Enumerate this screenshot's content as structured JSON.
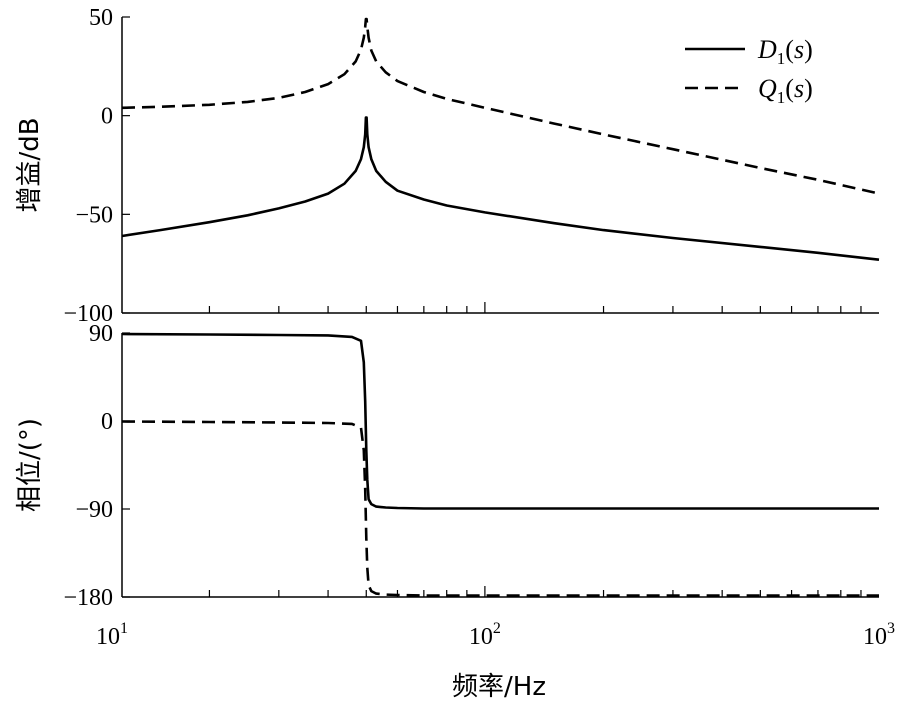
{
  "chart_data": [
    {
      "type": "line",
      "ylabel": "增益/dB",
      "xlabel": "",
      "xscale": "log",
      "xlim": [
        12,
        1000
      ],
      "ylim": [
        -100,
        50
      ],
      "yticks": [
        "50",
        "0",
        "−50",
        "−100"
      ],
      "ytick_values": [
        50,
        0,
        -50,
        -100
      ],
      "grid": false,
      "legend": "top-right",
      "series": [
        {
          "name": "D1(s)",
          "style": "solid",
          "x": [
            12,
            15,
            20,
            25,
            30,
            35,
            40,
            44,
            47,
            48.5,
            49.3,
            49.7,
            49.9,
            50.1,
            50.3,
            50.7,
            51.5,
            53,
            56,
            60,
            70,
            80,
            100,
            150,
            200,
            300,
            500,
            700,
            1000
          ],
          "y": [
            -61,
            -58,
            -54,
            -50.5,
            -47,
            -43.5,
            -39.5,
            -34.5,
            -28,
            -22,
            -16,
            -9.5,
            -1,
            -1,
            -9.5,
            -16,
            -22,
            -28,
            -33.5,
            -38,
            -42.5,
            -45.5,
            -49,
            -54.5,
            -58,
            -62,
            -66.5,
            -69.5,
            -73
          ]
        },
        {
          "name": "Q1(s)",
          "style": "dashed",
          "x": [
            12,
            15,
            20,
            25,
            30,
            35,
            40,
            44,
            47,
            48.5,
            49.3,
            49.7,
            49.9,
            50.1,
            50.3,
            50.7,
            51.5,
            53,
            56,
            60,
            70,
            80,
            100,
            150,
            200,
            300,
            500,
            700,
            1000
          ],
          "y": [
            4,
            4.5,
            5.5,
            7,
            9,
            12,
            16,
            21,
            27.5,
            33.5,
            39.5,
            45,
            49,
            49,
            45,
            39.5,
            33,
            27.5,
            22,
            17.5,
            12,
            8.5,
            4,
            -4,
            -9.5,
            -17,
            -26.5,
            -32.5,
            -39.5
          ]
        }
      ]
    },
    {
      "type": "line",
      "ylabel": "相位/(°)",
      "xlabel": "频率/Hz",
      "xscale": "log",
      "xlim": [
        12,
        1000
      ],
      "ylim": [
        -180,
        90
      ],
      "xticks": [
        "10",
        "10",
        "10"
      ],
      "xtick_exponents": [
        "1",
        "2",
        "3"
      ],
      "xtick_values": [
        10,
        100,
        1000
      ],
      "yticks": [
        "90",
        "0",
        "−90",
        "−180"
      ],
      "ytick_values": [
        90,
        0,
        -90,
        -180
      ],
      "grid": false,
      "series": [
        {
          "name": "D1(s)",
          "style": "solid",
          "x": [
            12,
            20,
            30,
            40,
            46,
            48.5,
            49.3,
            49.7,
            50,
            50.3,
            50.7,
            51.5,
            53,
            56,
            60,
            70,
            100,
            200,
            500,
            1000
          ],
          "y": [
            89,
            88.5,
            88,
            87.5,
            86,
            82,
            60,
            20,
            -30,
            -60,
            -80,
            -85,
            -87.5,
            -88.5,
            -89,
            -89.5,
            -89.5,
            -89.5,
            -89.5,
            -89.5
          ]
        },
        {
          "name": "Q1(s)",
          "style": "dashed",
          "x": [
            12,
            20,
            30,
            40,
            46,
            48.5,
            49.3,
            49.7,
            50,
            50.3,
            50.7,
            51.5,
            53,
            56,
            60,
            70,
            100,
            200,
            500,
            1000
          ],
          "y": [
            -0.5,
            -1,
            -1.5,
            -2,
            -3,
            -7,
            -30,
            -70,
            -120,
            -150,
            -168,
            -174,
            -176.5,
            -177.5,
            -178,
            -178.5,
            -178.5,
            -178.5,
            -178.5,
            -178.5
          ]
        }
      ]
    }
  ],
  "legend_entries": [
    {
      "letter": "D",
      "sub": "1",
      "paren": "(",
      "var": "s",
      "paren_close": ")"
    },
    {
      "letter": "Q",
      "sub": "1",
      "paren": "(",
      "var": "s",
      "paren_close": ")"
    }
  ]
}
